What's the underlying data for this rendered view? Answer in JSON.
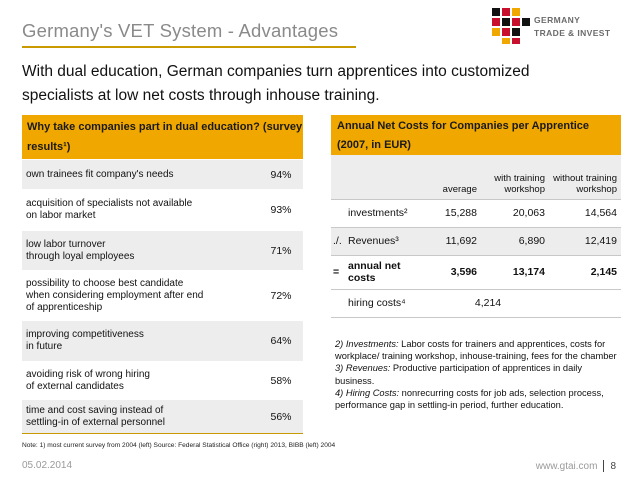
{
  "header": {
    "title": "Germany's VET System - Advantages",
    "logo_line1": "GERMANY",
    "logo_line2": "TRADE & INVEST"
  },
  "subtitle": "With dual education, German companies turn apprentices into customized specialists at low net costs through inhouse training.",
  "left_table": {
    "heading": "Why take companies part in dual education? (survey results¹)",
    "rows": [
      {
        "reason": "own trainees fit company's needs",
        "percent": "94%"
      },
      {
        "reason": "acquisition of specialists not available\non labor market",
        "percent": "93%"
      },
      {
        "reason": "low labor turnover\nthrough loyal employees",
        "percent": "71%"
      },
      {
        "reason": "possibility to choose best candidate\nwhen considering employment after end\nof apprenticeship",
        "percent": "72%"
      },
      {
        "reason": "improving competitiveness\nin future",
        "percent": "64%"
      },
      {
        "reason": "avoiding risk of wrong hiring\nof external candidates",
        "percent": "58%"
      },
      {
        "reason": "time and cost saving instead of\nsettling-in of external personnel",
        "percent": "56%"
      }
    ]
  },
  "note": "Note: 1) most current survey from 2004 (left) Source: Federal Statistical Office (right) 2013, BIBB (left) 2004",
  "right_table": {
    "heading": "Annual Net Costs for Companies per Apprentice (2007, in EUR)",
    "columns": [
      "average",
      "with training workshop",
      "without training workshop"
    ],
    "rows": [
      {
        "op": "",
        "label": "investments²",
        "average": "15,288",
        "with": "20,063",
        "without": "14,564"
      },
      {
        "op": "./.",
        "label": "Revenues³",
        "average": "11,692",
        "with": "6,890",
        "without": "12,419"
      },
      {
        "op": "=",
        "label": "annual net costs",
        "average": "3,596",
        "with": "13,174",
        "without": "2,145"
      }
    ],
    "hiring_label": "hiring costs⁴",
    "hiring_value": "4,214"
  },
  "explanations": [
    {
      "term": "2) Investments:",
      "text": " Labor costs for trainers and apprentices, costs for workplace/ training workshop, inhouse-training, fees for the chamber"
    },
    {
      "term": "3) Revenues:",
      "text": " Productive participation of apprentices in daily business."
    },
    {
      "term": "4) Hiring Costs:",
      "text": " nonrecurring costs for job ads, selection process, performance gap in settling-in period, further education."
    }
  ],
  "footer": {
    "date": "05.02.2014",
    "url": "www.gtai.com",
    "page": "8"
  },
  "colors": {
    "accent": "#f0a800",
    "title_gray": "#8a8a8a",
    "row_gray": "#ededed"
  }
}
